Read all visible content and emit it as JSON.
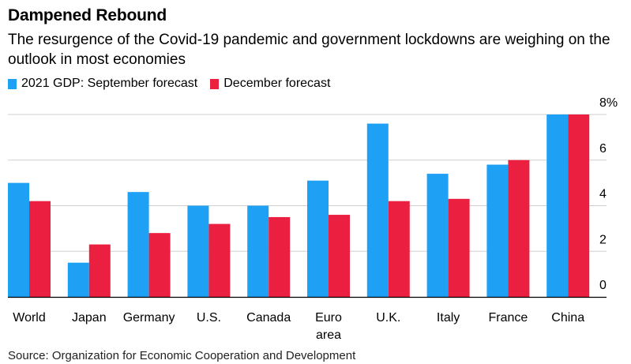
{
  "title": "Dampened Rebound",
  "subtitle": "The resurgence of the Covid-19 pandemic and government lockdowns are weighing on the outlook in most economies",
  "source": "Source: Organization for Economic Cooperation and Development",
  "colors": {
    "series1": "#1ea0f5",
    "series2": "#eb2040",
    "grid": "#cfcfcf",
    "axis": "#000000"
  },
  "chart_data": {
    "type": "bar",
    "title": "Dampened Rebound",
    "categories": [
      "World",
      "Japan",
      "Germany",
      "U.S.",
      "Canada",
      "Euro area",
      "U.K.",
      "Italy",
      "France",
      "China"
    ],
    "category_lines": [
      [
        "World"
      ],
      [
        "Japan"
      ],
      [
        "Germany"
      ],
      [
        "U.S."
      ],
      [
        "Canada"
      ],
      [
        "Euro",
        "area"
      ],
      [
        "U.K."
      ],
      [
        "Italy"
      ],
      [
        "France"
      ],
      [
        "China"
      ]
    ],
    "series": [
      {
        "name": "2021 GDP: September forecast",
        "values": [
          5.0,
          1.5,
          4.6,
          4.0,
          4.0,
          5.1,
          7.6,
          5.4,
          5.8,
          8.0
        ]
      },
      {
        "name": "December forecast",
        "values": [
          4.2,
          2.3,
          2.8,
          3.2,
          3.5,
          3.6,
          4.2,
          4.3,
          6.0,
          8.0
        ]
      }
    ],
    "ylim": [
      0,
      8
    ],
    "yticks": [
      "0",
      "2",
      "4",
      "6",
      "8%"
    ],
    "ytick_values": [
      0,
      2,
      4,
      6,
      8
    ],
    "xlabel": "",
    "ylabel": "",
    "grid": true,
    "legend_position": "top-left"
  }
}
